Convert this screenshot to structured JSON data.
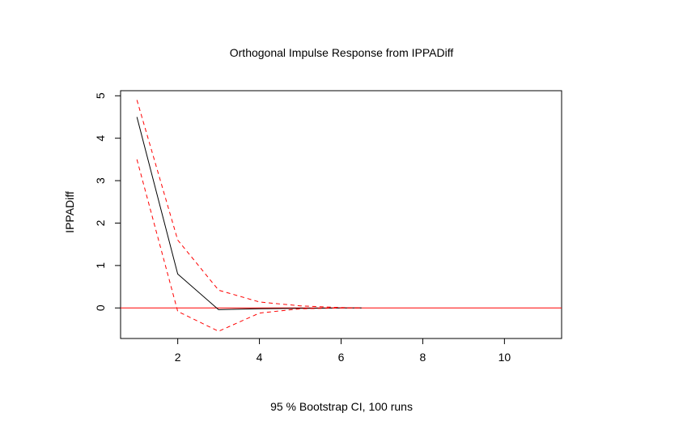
{
  "chart_data": {
    "type": "line",
    "title": "Orthogonal Impulse Response from IPPADiff",
    "xlabel": "95 % Bootstrap CI,  100 runs",
    "ylabel": "IPPADiff",
    "xlim": [
      0.6,
      11.4
    ],
    "ylim": [
      -0.72,
      5.12
    ],
    "xticks": [
      2,
      4,
      6,
      8,
      10
    ],
    "yticks": [
      0,
      1,
      2,
      3,
      4,
      5
    ],
    "x": [
      1,
      2,
      3,
      4,
      5,
      6,
      6.5
    ],
    "series": [
      {
        "role": "response",
        "values": [
          4.5,
          0.8,
          -0.04,
          -0.02,
          -0.01,
          0.0,
          0.0
        ],
        "color": "#000000",
        "dash": "solid"
      },
      {
        "role": "upper-ci",
        "values": [
          4.9,
          1.6,
          0.42,
          0.14,
          0.05,
          0.01,
          0.0
        ],
        "color": "#ff0000",
        "dash": "dashed"
      },
      {
        "role": "lower-ci",
        "values": [
          3.5,
          -0.08,
          -0.55,
          -0.12,
          -0.02,
          0.0,
          0.0
        ],
        "color": "#ff0000",
        "dash": "dashed"
      }
    ],
    "hline": {
      "y": 0,
      "color": "#ff0000"
    },
    "grid": false,
    "legend": "none"
  }
}
